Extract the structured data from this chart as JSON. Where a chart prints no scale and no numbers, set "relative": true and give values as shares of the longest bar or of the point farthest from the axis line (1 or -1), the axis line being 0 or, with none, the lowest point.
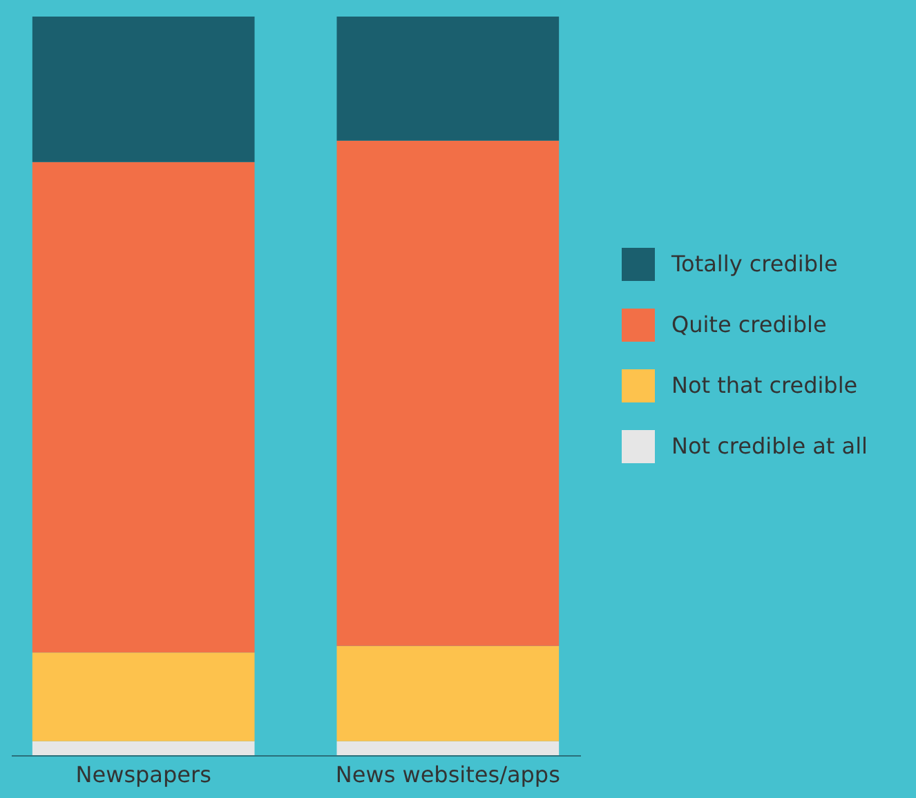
{
  "chart_data": {
    "type": "bar",
    "stacked": true,
    "relative": true,
    "legend": "right",
    "categories": [
      "Newspapers",
      "News websites/apps"
    ],
    "series": [
      {
        "name": "Not credible at all",
        "color": "#e6e6e6",
        "values": [
          0.019,
          0.019
        ]
      },
      {
        "name": "Not that credible",
        "color": "#fdc24d",
        "values": [
          0.12,
          0.129
        ]
      },
      {
        "name": "Quite credible",
        "color": "#f26f47",
        "values": [
          0.664,
          0.684
        ]
      },
      {
        "name": "Totally credible",
        "color": "#1b5f6e",
        "values": [
          0.197,
          0.168
        ]
      }
    ]
  }
}
